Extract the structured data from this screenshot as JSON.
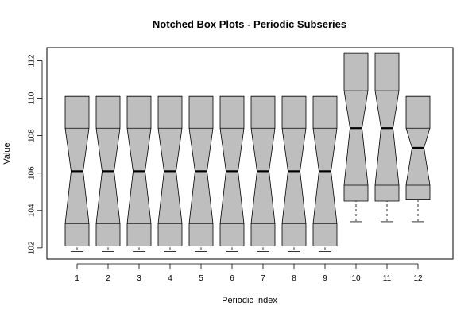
{
  "chart_data": {
    "type": "notched-boxplot",
    "title": "Notched Box Plots - Periodic Subseries",
    "xlabel": "Periodic Index",
    "ylabel": "Value",
    "ylim": [
      101.4,
      112.7
    ],
    "y_ticks": [
      102,
      104,
      106,
      108,
      110,
      112
    ],
    "categories": [
      "1",
      "2",
      "3",
      "4",
      "5",
      "6",
      "7",
      "8",
      "9",
      "10",
      "11",
      "12"
    ],
    "boxes": [
      {
        "whisker_low": 101.8,
        "q1": 103.3,
        "median": 106.1,
        "q3": 108.4,
        "whisker_high": 109.45,
        "notch_low": 102.1,
        "notch_high": 110.1
      },
      {
        "whisker_low": 101.8,
        "q1": 103.3,
        "median": 106.1,
        "q3": 108.4,
        "whisker_high": 109.45,
        "notch_low": 102.1,
        "notch_high": 110.1
      },
      {
        "whisker_low": 101.8,
        "q1": 103.3,
        "median": 106.1,
        "q3": 108.4,
        "whisker_high": 109.45,
        "notch_low": 102.1,
        "notch_high": 110.1
      },
      {
        "whisker_low": 101.8,
        "q1": 103.3,
        "median": 106.1,
        "q3": 108.4,
        "whisker_high": 109.45,
        "notch_low": 102.1,
        "notch_high": 110.1
      },
      {
        "whisker_low": 101.8,
        "q1": 103.3,
        "median": 106.1,
        "q3": 108.4,
        "whisker_high": 109.45,
        "notch_low": 102.1,
        "notch_high": 110.1
      },
      {
        "whisker_low": 101.8,
        "q1": 103.3,
        "median": 106.1,
        "q3": 108.4,
        "whisker_high": 109.45,
        "notch_low": 102.1,
        "notch_high": 110.1
      },
      {
        "whisker_low": 101.8,
        "q1": 103.3,
        "median": 106.1,
        "q3": 108.4,
        "whisker_high": 109.45,
        "notch_low": 102.1,
        "notch_high": 110.1
      },
      {
        "whisker_low": 101.8,
        "q1": 103.3,
        "median": 106.1,
        "q3": 108.4,
        "whisker_high": 109.45,
        "notch_low": 102.1,
        "notch_high": 110.1
      },
      {
        "whisker_low": 101.8,
        "q1": 103.3,
        "median": 106.1,
        "q3": 108.4,
        "whisker_high": 109.45,
        "notch_low": 102.1,
        "notch_high": 110.1
      },
      {
        "whisker_low": 103.4,
        "q1": 105.35,
        "median": 108.4,
        "q3": 110.4,
        "whisker_high": 111.3,
        "notch_low": 104.5,
        "notch_high": 112.4
      },
      {
        "whisker_low": 103.4,
        "q1": 105.35,
        "median": 108.4,
        "q3": 110.4,
        "whisker_high": 111.3,
        "notch_low": 104.5,
        "notch_high": 112.4
      },
      {
        "whisker_low": 103.4,
        "q1": 105.35,
        "median": 107.35,
        "q3": 108.4,
        "whisker_high": 109.45,
        "notch_low": 104.6,
        "notch_high": 110.1
      }
    ],
    "box_fill": "#bebebe",
    "grid": false,
    "legend": "none"
  }
}
